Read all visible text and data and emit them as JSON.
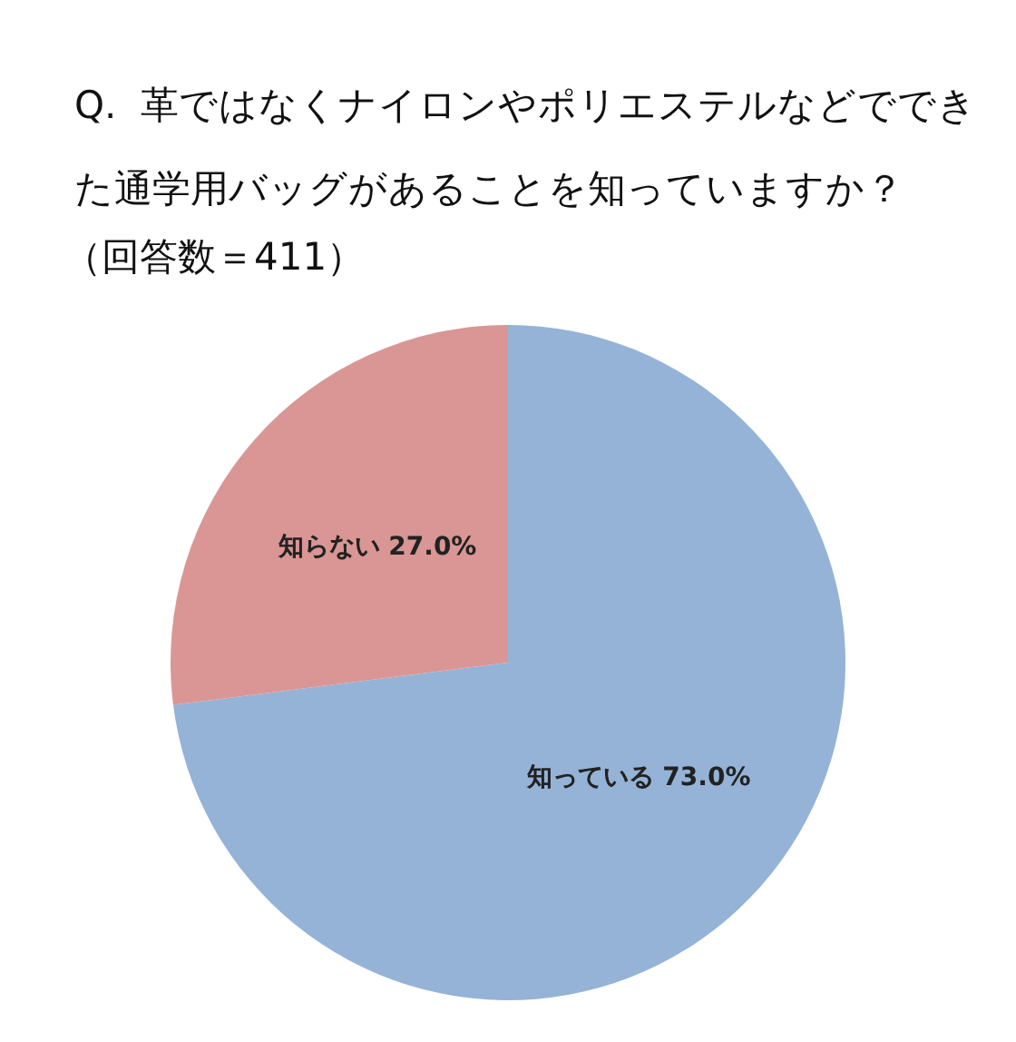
{
  "chart_data": {
    "type": "pie",
    "title": "Q.  革ではなくナイロンやポリエステルなどでできた通学用バッグがあることを知っていますか？",
    "subtitle": "（回答数＝411）",
    "categories": [
      "知っている",
      "知らない"
    ],
    "values": [
      73.0,
      27.0
    ],
    "value_labels": [
      "73.0%",
      "27.0%"
    ],
    "colors": [
      "#95b3d7",
      "#d99694"
    ]
  }
}
